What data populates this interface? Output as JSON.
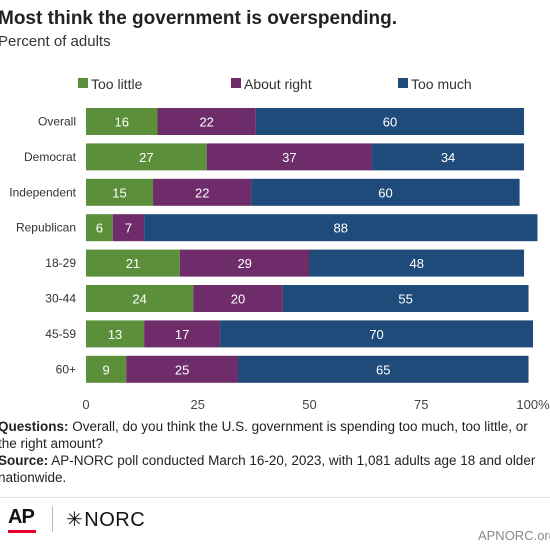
{
  "title": "Most think the government is overspending.",
  "subtitle": "Percent of adults",
  "notes": {
    "questions_label": "Questions:",
    "questions_text": "Overall, do you think the U.S. government is spending too much, too little, or the right amount?",
    "source_label": "Source:",
    "source_text": "AP-NORC poll conducted March 16-20, 2023, with 1,081 adults age 18 and older nationwide."
  },
  "footer": {
    "ap_logo": "AP",
    "norc_logo": "NORC",
    "url": "APNORC.org"
  },
  "chart_data": {
    "type": "bar",
    "orientation": "horizontal",
    "stacked": true,
    "categories": [
      "Overall",
      "Democrat",
      "Independent",
      "Republican",
      "18-29",
      "30-44",
      "45-59",
      "60+"
    ],
    "series": [
      {
        "name": "Too little",
        "color": "#5b8f3a",
        "values": [
          16,
          27,
          15,
          6,
          21,
          24,
          13,
          9
        ]
      },
      {
        "name": "About right",
        "color": "#6e2c6b",
        "values": [
          22,
          37,
          22,
          7,
          29,
          20,
          17,
          25
        ]
      },
      {
        "name": "Too much",
        "color": "#1f4b7a",
        "values": [
          60,
          34,
          60,
          88,
          48,
          55,
          70,
          65
        ]
      }
    ],
    "xlim": [
      0,
      100
    ],
    "x_ticks": [
      "0",
      "25",
      "50",
      "75",
      "100%"
    ],
    "legend_position": "top",
    "grid": false
  }
}
